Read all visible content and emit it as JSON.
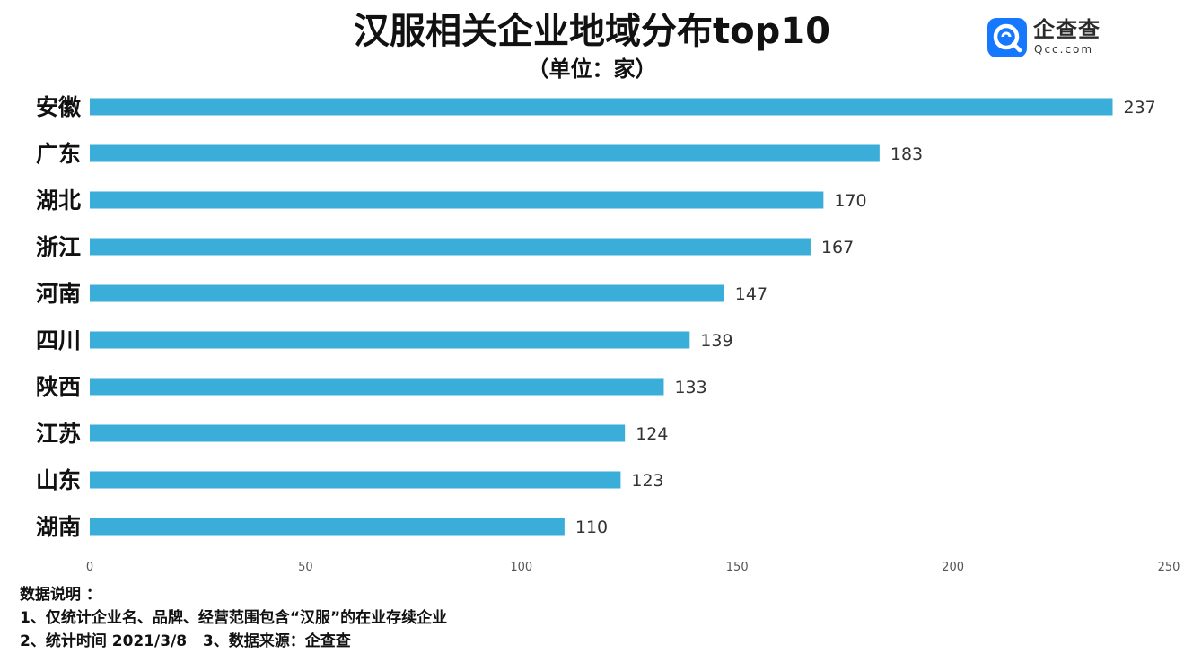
{
  "title": "汉服相关企业地域分布top10",
  "subtitle": "（单位：家）",
  "logo": {
    "name": "企查查",
    "sub": "Qcc.com",
    "color": "#1677ff",
    "icon": "qcc-logo-icon"
  },
  "notes": {
    "heading": "数据说明 ：",
    "line1": "1、仅统计企业名、品牌、经营范围包含“汉服”的在业存续企业",
    "line2": "2、统计时间 2021/3/8   3、数据来源：企查查"
  },
  "chart_data": {
    "type": "bar",
    "orientation": "horizontal",
    "categories": [
      "安徽",
      "广东",
      "湖北",
      "浙江",
      "河南",
      "四川",
      "陕西",
      "江苏",
      "山东",
      "湖南"
    ],
    "values": [
      237,
      183,
      170,
      167,
      147,
      139,
      133,
      124,
      123,
      110
    ],
    "xlim": [
      0,
      250
    ],
    "xticks": [
      "0",
      "50",
      "100",
      "150",
      "200",
      "250"
    ],
    "bar_color": "#3aaed8",
    "grid": false,
    "data_labels": true
  }
}
